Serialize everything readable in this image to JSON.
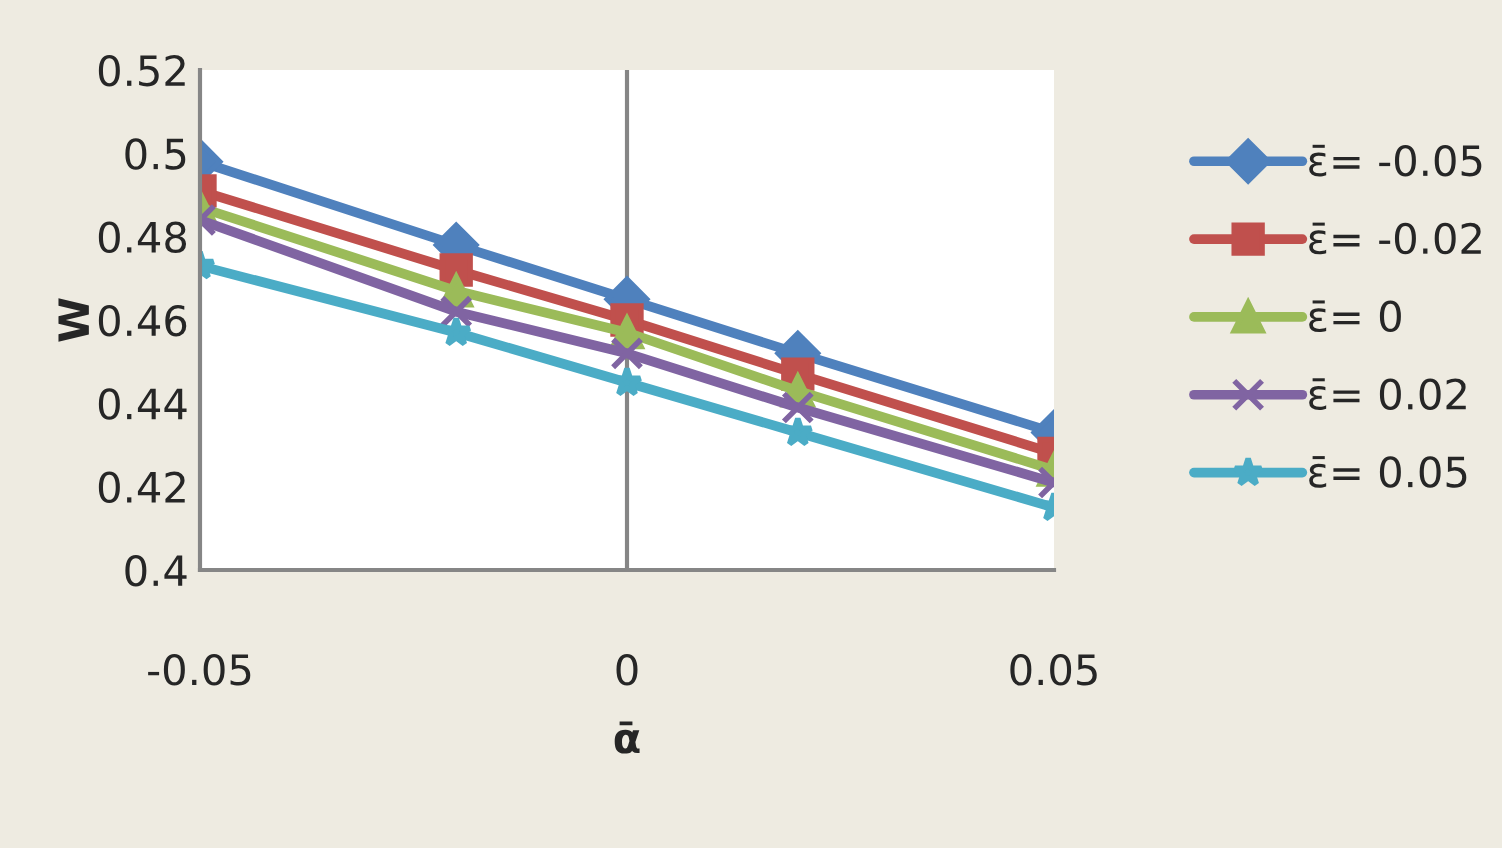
{
  "chart_data": {
    "type": "line",
    "xlabel": "ᾱ",
    "ylabel": "W",
    "x": [
      -0.05,
      -0.02,
      0,
      0.02,
      0.05
    ],
    "series": [
      {
        "name": "ε̄= -0.05",
        "color": "#4f81bd",
        "marker": "diamond",
        "values": [
          0.498,
          0.478,
          0.465,
          0.452,
          0.433
        ]
      },
      {
        "name": "ε̄= -0.02",
        "color": "#c0504d",
        "marker": "square",
        "values": [
          0.491,
          0.472,
          0.46,
          0.447,
          0.428
        ]
      },
      {
        "name": "ε̄= 0",
        "color": "#9bbb59",
        "marker": "triangle",
        "values": [
          0.487,
          0.467,
          0.457,
          0.443,
          0.424
        ]
      },
      {
        "name": "ε̄= 0.02",
        "color": "#8064a2",
        "marker": "cross",
        "values": [
          0.484,
          0.462,
          0.452,
          0.439,
          0.421
        ]
      },
      {
        "name": "ε̄= 0.05",
        "color": "#4bacc6",
        "marker": "star",
        "values": [
          0.473,
          0.457,
          0.445,
          0.433,
          0.415
        ]
      }
    ],
    "xlim": [
      -0.05,
      0.05
    ],
    "xticks": [
      -0.05,
      0,
      0.05
    ],
    "ylim": [
      0.4,
      0.52
    ],
    "yticks": [
      0.4,
      0.42,
      0.44,
      0.46,
      0.48,
      0.5,
      0.52
    ],
    "ref_lines": [
      {
        "axis": "x",
        "value": 0,
        "color": "#868686"
      }
    ],
    "grid": false,
    "legend": "right"
  }
}
